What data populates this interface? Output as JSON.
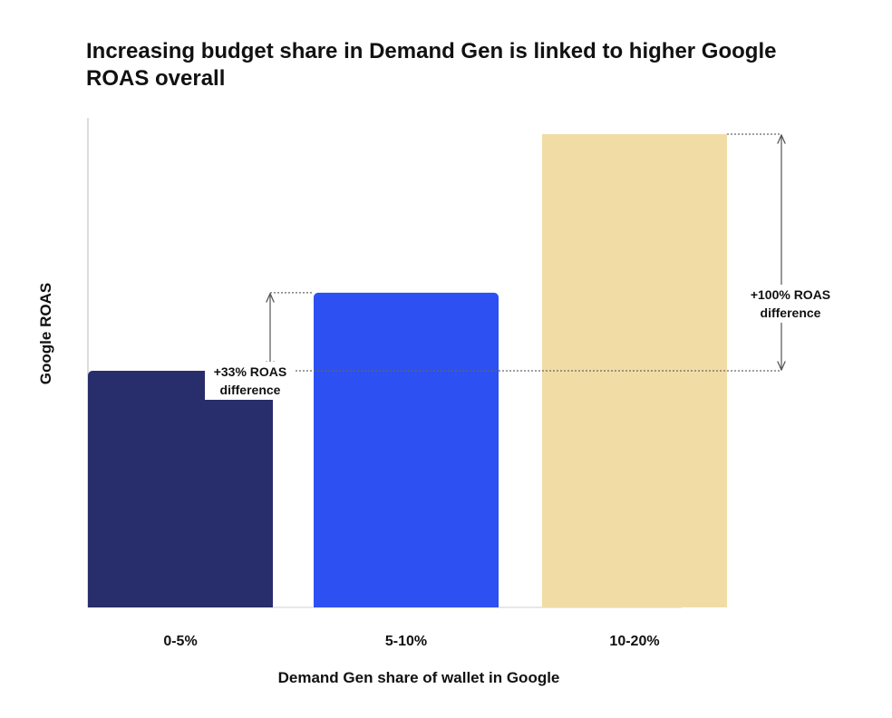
{
  "chart_data": {
    "type": "bar",
    "title": "Increasing budget share in Demand Gen is linked to higher Google ROAS overall",
    "xlabel": "Demand Gen share of wallet in Google",
    "ylabel": "Google ROAS",
    "categories": [
      "0-5%",
      "5-10%",
      "10-20%"
    ],
    "values": [
      1.0,
      1.33,
      2.0
    ],
    "ylim": [
      0,
      2.0
    ],
    "colors": [
      "#282d6b",
      "#2d50f2",
      "#f2dca6"
    ],
    "grid": false,
    "legend": "none",
    "annotations": [
      {
        "lines": [
          "+33% ROAS",
          "difference"
        ],
        "from_category": "0-5%",
        "to_category": "5-10%"
      },
      {
        "lines": [
          "+100% ROAS",
          "difference"
        ],
        "from_category": "0-5%",
        "to_category": "10-20%"
      }
    ]
  }
}
